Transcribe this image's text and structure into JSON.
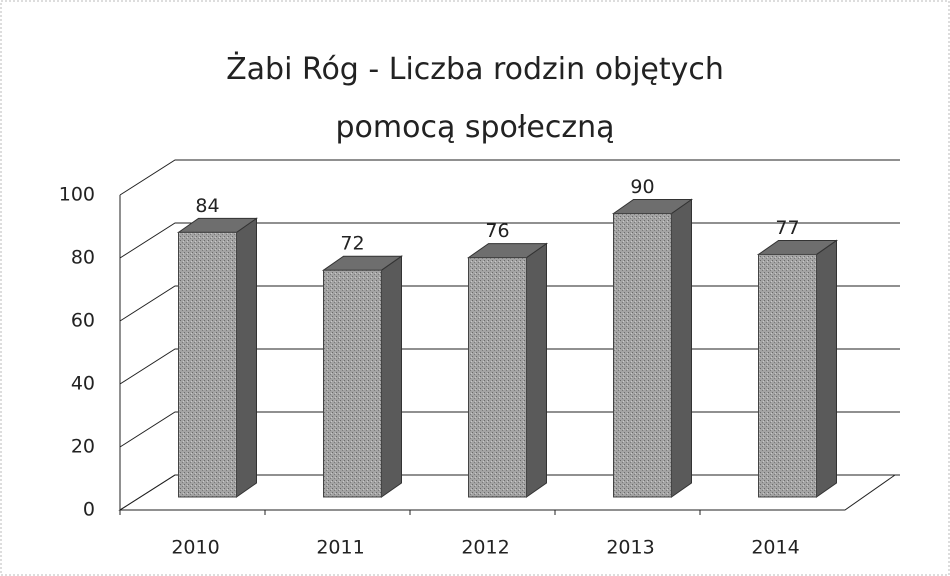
{
  "chart_data": {
    "type": "bar3d",
    "title": "Żabi Róg - Liczba rodzin objętych pomocą społeczną",
    "categories": [
      "2010",
      "2011",
      "2012",
      "2013",
      "2014"
    ],
    "values": [
      84,
      72,
      76,
      90,
      77
    ],
    "color": "#9a9a9a",
    "ylim": [
      0,
      100
    ],
    "yticks": [
      0,
      20,
      40,
      60,
      80,
      100
    ],
    "grid": true
  }
}
